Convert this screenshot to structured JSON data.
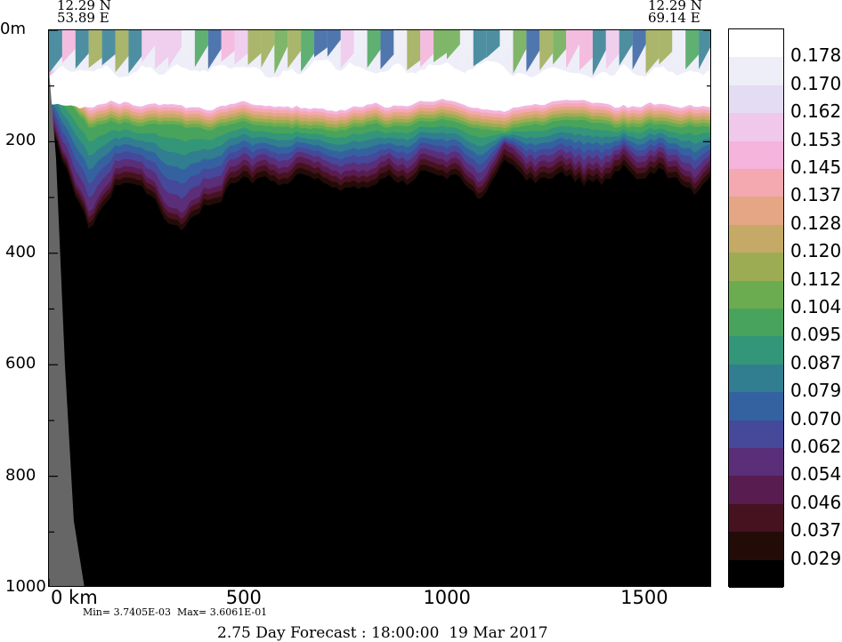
{
  "corners": {
    "left_lat": "12.29 N",
    "left_lon": "53.89 E",
    "right_lat": "12.29 N",
    "right_lon": "69.14 E"
  },
  "footer": {
    "minmax": "Min= 3.7405E-03  Max= 3.6061E-01",
    "forecast": "2.75 Day Forecast : 18:00:00  19 Mar 2017"
  },
  "chart_data": {
    "type": "heatmap",
    "title": "",
    "y_axis": {
      "labels": [
        "0m",
        "200",
        "400",
        "600",
        "800",
        "1000"
      ],
      "values": [
        0,
        200,
        400,
        600,
        800,
        1000
      ],
      "ylim": [
        1000,
        0
      ]
    },
    "x_axis": {
      "labels": [
        "0 km",
        "500",
        "1000",
        "1500"
      ],
      "values": [
        0,
        500,
        1000,
        1500
      ],
      "xlim": [
        0,
        1680
      ]
    },
    "colorbar": {
      "levels": [
        "0.178",
        "0.170",
        "0.162",
        "0.153",
        "0.145",
        "0.137",
        "0.128",
        "0.120",
        "0.112",
        "0.104",
        "0.095",
        "0.087",
        "0.079",
        "0.070",
        "0.062",
        "0.054",
        "0.046",
        "0.037",
        "0.029"
      ],
      "colors": [
        "#ffffff",
        "#eeeef8",
        "#e4dcf2",
        "#f0c8ec",
        "#f4b4dc",
        "#f4a8b0",
        "#e4a684",
        "#c4aa66",
        "#9cac52",
        "#6cac50",
        "#48a45c",
        "#349678",
        "#307e90",
        "#3462a0",
        "#46489a",
        "#5a2e78",
        "#581c50",
        "#461220",
        "#230c08",
        "#000000"
      ]
    },
    "land_mask": {
      "description": "coastal topography on left edge",
      "x_range_km": [
        0,
        90
      ]
    },
    "layer_depths_m": {
      "bright_max_core": [
        90,
        140
      ],
      "oxycline_bottom": [
        250,
        400
      ]
    }
  }
}
